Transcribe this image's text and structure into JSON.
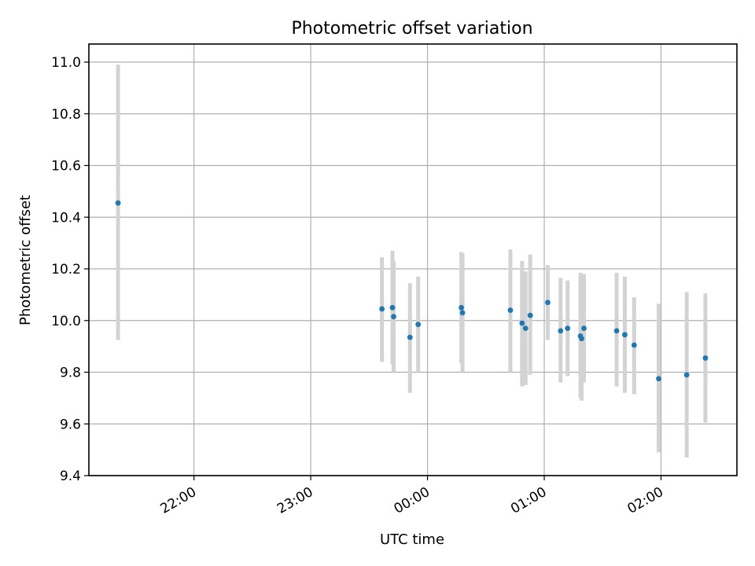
{
  "chart_data": {
    "type": "scatter",
    "title": "Photometric offset variation",
    "xlabel": "UTC time",
    "ylabel": "Photometric offset",
    "xlim_hours": [
      21.1,
      26.65
    ],
    "ylim": [
      9.4,
      11.07
    ],
    "x_ticks": [
      {
        "hour": 22.0,
        "label": "22:00"
      },
      {
        "hour": 23.0,
        "label": "23:00"
      },
      {
        "hour": 24.0,
        "label": "00:00"
      },
      {
        "hour": 25.0,
        "label": "01:00"
      },
      {
        "hour": 26.0,
        "label": "02:00"
      }
    ],
    "y_ticks": [
      {
        "value": 9.4,
        "label": "9.4"
      },
      {
        "value": 9.6,
        "label": "9.6"
      },
      {
        "value": 9.8,
        "label": "9.8"
      },
      {
        "value": 10.0,
        "label": "10.0"
      },
      {
        "value": 10.2,
        "label": "10.2"
      },
      {
        "value": 10.4,
        "label": "10.4"
      },
      {
        "value": 10.6,
        "label": "10.6"
      },
      {
        "value": 10.8,
        "label": "10.8"
      },
      {
        "value": 11.0,
        "label": "11.0"
      }
    ],
    "grid": true,
    "marker_color": "#1f77b4",
    "errorbar_color": "#d3d3d3",
    "x_axis_note": "x values are UTC hours; values above 24 are after midnight (24.5 = 00:30)",
    "points": [
      {
        "x": 21.35,
        "y": 10.455,
        "ylo": 9.925,
        "yhi": 10.99
      },
      {
        "x": 23.61,
        "y": 10.045,
        "ylo": 9.84,
        "yhi": 10.245
      },
      {
        "x": 23.7,
        "y": 10.05,
        "ylo": 9.83,
        "yhi": 10.27
      },
      {
        "x": 23.71,
        "y": 10.015,
        "ylo": 9.8,
        "yhi": 10.23
      },
      {
        "x": 23.85,
        "y": 9.935,
        "ylo": 9.72,
        "yhi": 10.145
      },
      {
        "x": 23.92,
        "y": 9.985,
        "ylo": 9.8,
        "yhi": 10.17
      },
      {
        "x": 24.29,
        "y": 10.05,
        "ylo": 9.835,
        "yhi": 10.265
      },
      {
        "x": 24.3,
        "y": 10.03,
        "ylo": 9.8,
        "yhi": 10.26
      },
      {
        "x": 24.71,
        "y": 10.04,
        "ylo": 9.8,
        "yhi": 10.275
      },
      {
        "x": 24.81,
        "y": 9.99,
        "ylo": 9.745,
        "yhi": 10.23
      },
      {
        "x": 24.84,
        "y": 9.97,
        "ylo": 9.75,
        "yhi": 10.19
      },
      {
        "x": 24.88,
        "y": 10.02,
        "ylo": 9.79,
        "yhi": 10.255
      },
      {
        "x": 25.03,
        "y": 10.07,
        "ylo": 9.925,
        "yhi": 10.215
      },
      {
        "x": 25.14,
        "y": 9.96,
        "ylo": 9.76,
        "yhi": 10.165
      },
      {
        "x": 25.2,
        "y": 9.97,
        "ylo": 9.785,
        "yhi": 10.155
      },
      {
        "x": 25.31,
        "y": 9.94,
        "ylo": 9.7,
        "yhi": 10.185
      },
      {
        "x": 25.32,
        "y": 9.93,
        "ylo": 9.69,
        "yhi": 10.18
      },
      {
        "x": 25.34,
        "y": 9.97,
        "ylo": 9.76,
        "yhi": 10.18
      },
      {
        "x": 25.62,
        "y": 9.96,
        "ylo": 9.745,
        "yhi": 10.185
      },
      {
        "x": 25.69,
        "y": 9.945,
        "ylo": 9.72,
        "yhi": 10.17
      },
      {
        "x": 25.77,
        "y": 9.905,
        "ylo": 9.715,
        "yhi": 10.09
      },
      {
        "x": 25.98,
        "y": 9.775,
        "ylo": 9.49,
        "yhi": 10.065
      },
      {
        "x": 26.22,
        "y": 9.79,
        "ylo": 9.47,
        "yhi": 10.11
      },
      {
        "x": 26.38,
        "y": 9.855,
        "ylo": 9.605,
        "yhi": 10.105
      }
    ]
  }
}
